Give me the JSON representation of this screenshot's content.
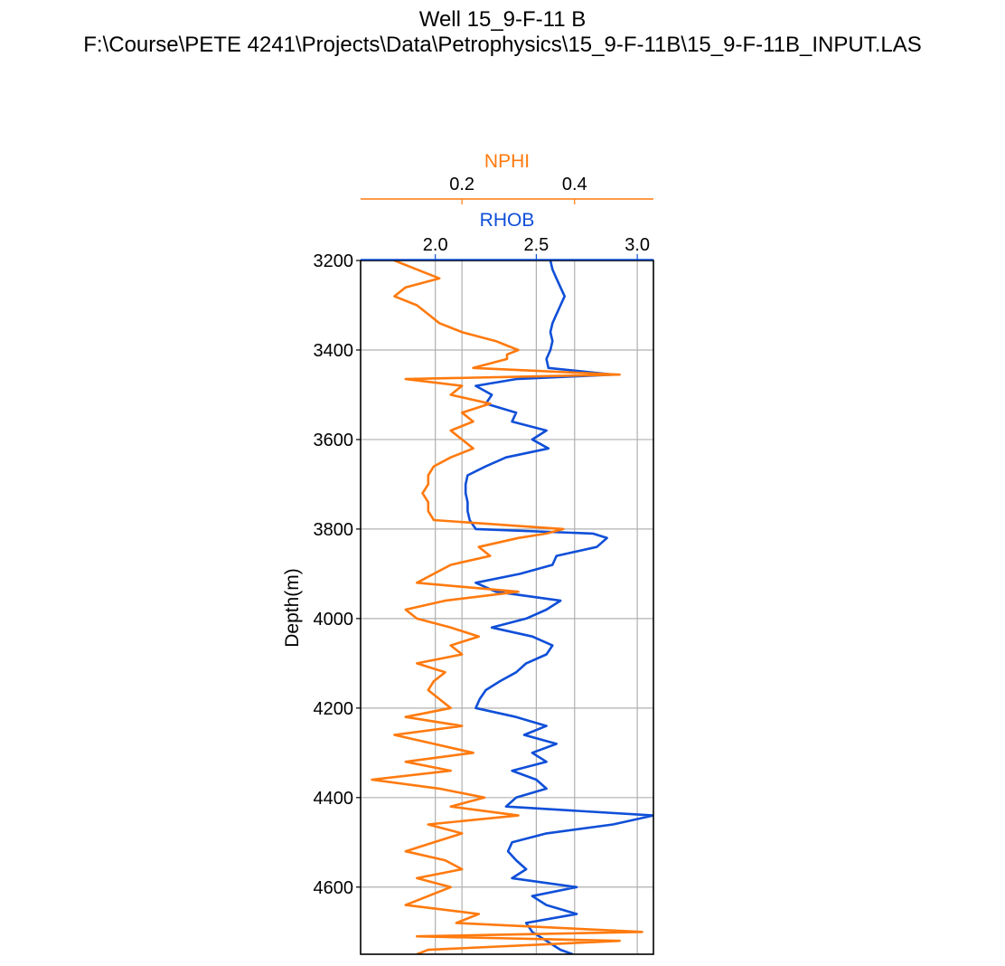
{
  "title": {
    "line1": "Well 15_9-F-11 B",
    "line2": "F:\\Course\\PETE 4241\\Projects\\Data\\Petrophysics\\15_9-F-11B\\15_9-F-11B_INPUT.LAS"
  },
  "chart_data": {
    "type": "line",
    "ylabel": "Depth(m)",
    "ylim": [
      4750,
      3200
    ],
    "yticks": [
      3200,
      3400,
      3600,
      3800,
      4000,
      4200,
      4400,
      4600
    ],
    "grid": true,
    "axes": [
      {
        "name": "NPHI",
        "color": "#ff7a0e",
        "xlim": [
          0.02,
          0.54
        ],
        "ticks": [
          0.2,
          0.4
        ],
        "tick_labels": [
          "0.2",
          "0.4"
        ]
      },
      {
        "name": "RHOB",
        "color": "#0f4fd8",
        "xlim": [
          1.63,
          3.08
        ],
        "ticks": [
          2.0,
          2.5,
          3.0
        ],
        "tick_labels": [
          "2.0",
          "2.5",
          "3.0"
        ]
      }
    ],
    "series": [
      {
        "name": "RHOB",
        "axis": "RHOB",
        "color": "#0f4fd8",
        "depth": [
          3200,
          3220,
          3240,
          3260,
          3280,
          3300,
          3320,
          3340,
          3360,
          3380,
          3400,
          3420,
          3440,
          3455,
          3465,
          3480,
          3500,
          3520,
          3540,
          3560,
          3580,
          3600,
          3620,
          3640,
          3660,
          3680,
          3700,
          3720,
          3740,
          3760,
          3780,
          3800,
          3810,
          3820,
          3840,
          3860,
          3880,
          3900,
          3920,
          3940,
          3960,
          3980,
          4000,
          4020,
          4040,
          4060,
          4080,
          4100,
          4120,
          4140,
          4160,
          4180,
          4200,
          4220,
          4240,
          4260,
          4280,
          4300,
          4320,
          4340,
          4360,
          4380,
          4400,
          4420,
          4440,
          4460,
          4480,
          4500,
          4520,
          4540,
          4560,
          4580,
          4600,
          4620,
          4640,
          4660,
          4680,
          4700,
          4720,
          4740,
          4750
        ],
        "values": [
          2.57,
          2.58,
          2.6,
          2.62,
          2.64,
          2.62,
          2.6,
          2.58,
          2.57,
          2.58,
          2.57,
          2.55,
          2.56,
          2.88,
          2.4,
          2.2,
          2.28,
          2.25,
          2.4,
          2.38,
          2.55,
          2.48,
          2.56,
          2.35,
          2.25,
          2.16,
          2.15,
          2.15,
          2.16,
          2.16,
          2.17,
          2.2,
          2.78,
          2.85,
          2.8,
          2.6,
          2.58,
          2.42,
          2.2,
          2.3,
          2.62,
          2.55,
          2.45,
          2.28,
          2.48,
          2.58,
          2.55,
          2.45,
          2.4,
          2.32,
          2.25,
          2.22,
          2.2,
          2.4,
          2.55,
          2.44,
          2.6,
          2.48,
          2.55,
          2.38,
          2.5,
          2.55,
          2.4,
          2.35,
          3.08,
          2.88,
          2.55,
          2.38,
          2.36,
          2.4,
          2.45,
          2.38,
          2.7,
          2.48,
          2.55,
          2.7,
          2.45,
          2.48,
          2.55,
          2.62,
          2.68
        ]
      },
      {
        "name": "NPHI",
        "axis": "NPHI",
        "color": "#ff7a0e",
        "depth": [
          3200,
          3220,
          3240,
          3260,
          3280,
          3300,
          3320,
          3340,
          3360,
          3380,
          3400,
          3410,
          3420,
          3440,
          3455,
          3465,
          3480,
          3500,
          3520,
          3540,
          3560,
          3580,
          3600,
          3620,
          3640,
          3660,
          3680,
          3700,
          3720,
          3740,
          3760,
          3780,
          3800,
          3810,
          3820,
          3840,
          3860,
          3880,
          3900,
          3920,
          3940,
          3960,
          3980,
          4000,
          4020,
          4040,
          4060,
          4080,
          4100,
          4120,
          4140,
          4160,
          4180,
          4200,
          4220,
          4240,
          4260,
          4280,
          4300,
          4320,
          4340,
          4360,
          4380,
          4400,
          4420,
          4440,
          4460,
          4480,
          4500,
          4520,
          4540,
          4560,
          4580,
          4600,
          4620,
          4640,
          4660,
          4680,
          4700,
          4710,
          4720,
          4740,
          4750
        ],
        "values": [
          0.08,
          0.12,
          0.16,
          0.1,
          0.08,
          0.12,
          0.14,
          0.16,
          0.2,
          0.26,
          0.3,
          0.28,
          0.28,
          0.22,
          0.48,
          0.1,
          0.2,
          0.18,
          0.25,
          0.2,
          0.22,
          0.18,
          0.2,
          0.22,
          0.18,
          0.15,
          0.14,
          0.14,
          0.13,
          0.14,
          0.14,
          0.15,
          0.38,
          0.35,
          0.3,
          0.23,
          0.25,
          0.18,
          0.15,
          0.12,
          0.3,
          0.17,
          0.1,
          0.12,
          0.18,
          0.23,
          0.18,
          0.2,
          0.12,
          0.17,
          0.15,
          0.14,
          0.16,
          0.18,
          0.1,
          0.2,
          0.08,
          0.15,
          0.22,
          0.1,
          0.18,
          0.04,
          0.16,
          0.24,
          0.18,
          0.3,
          0.14,
          0.2,
          0.15,
          0.1,
          0.17,
          0.2,
          0.12,
          0.18,
          0.14,
          0.1,
          0.23,
          0.19,
          0.52,
          0.12,
          0.48,
          0.14,
          0.12
        ]
      }
    ]
  }
}
